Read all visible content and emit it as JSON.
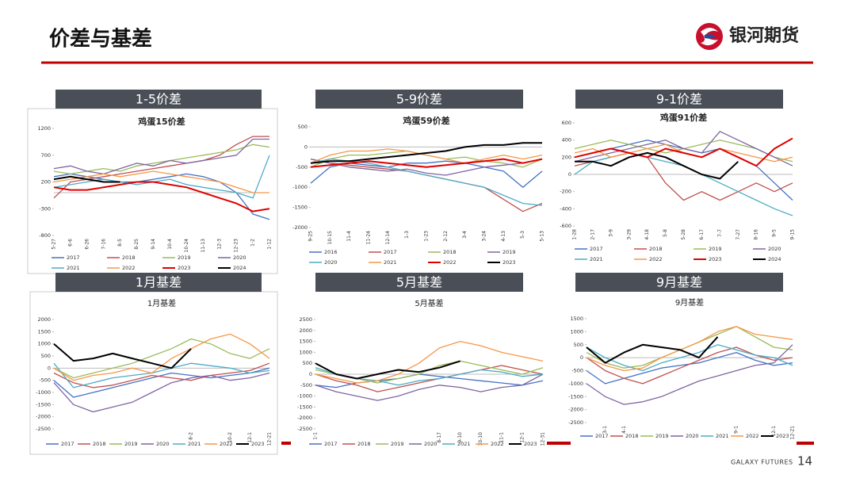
{
  "header": {
    "title": "价差与基差",
    "logo": "银河期货"
  },
  "footer": {
    "brand": "GALAXY FUTURES",
    "page": "14"
  },
  "chart_data": [
    {
      "type": "line",
      "section": "1-5价差",
      "title": "鸡蛋15价差",
      "categories": [
        "5-27",
        "6-6",
        "6-26",
        "7-16",
        "8-5",
        "8-25",
        "9-14",
        "10-4",
        "10-24",
        "11-13",
        "12-3",
        "12-23",
        "1-2",
        "1-12"
      ],
      "ylim": [
        -800,
        1200
      ],
      "yticks": [
        -800,
        -300,
        200,
        700,
        1200
      ],
      "series": [
        {
          "name": "2017",
          "color": "#4472c4",
          "values": [
            300,
            350,
            300,
            250,
            200,
            200,
            250,
            300,
            350,
            300,
            200,
            0,
            -400,
            -500
          ]
        },
        {
          "name": "2018",
          "color": "#c0504d",
          "values": [
            -100,
            200,
            250,
            300,
            350,
            400,
            450,
            500,
            550,
            600,
            700,
            900,
            1050,
            1050
          ]
        },
        {
          "name": "2019",
          "color": "#9bbb59",
          "values": [
            400,
            350,
            400,
            450,
            400,
            500,
            550,
            600,
            650,
            700,
            750,
            800,
            900,
            850
          ]
        },
        {
          "name": "2020",
          "color": "#8064a2",
          "values": [
            450,
            500,
            400,
            350,
            450,
            550,
            500,
            600,
            550,
            600,
            650,
            700,
            1000,
            1000
          ]
        },
        {
          "name": "2021",
          "color": "#4bacc6",
          "values": [
            100,
            150,
            200,
            250,
            200,
            150,
            200,
            250,
            150,
            100,
            50,
            0,
            -100,
            700
          ]
        },
        {
          "name": "2022",
          "color": "#f79646",
          "values": [
            200,
            250,
            300,
            350,
            300,
            350,
            400,
            350,
            300,
            250,
            200,
            100,
            0,
            0
          ]
        },
        {
          "name": "2023",
          "color": "#e00000",
          "values": [
            100,
            50,
            50,
            100,
            150,
            200,
            200,
            150,
            100,
            0,
            -100,
            -200,
            -350,
            -300
          ]
        },
        {
          "name": "2024",
          "color": "#000000",
          "values": [
            250,
            300,
            250,
            200,
            200,
            null,
            null,
            null,
            null,
            null,
            null,
            null,
            null,
            null
          ]
        }
      ]
    },
    {
      "type": "line",
      "section": "5-9价差",
      "title": "鸡蛋59价差",
      "categories": [
        "9-25",
        "10-15",
        "11-4",
        "11-24",
        "12-14",
        "1-3",
        "1-23",
        "2-12",
        "3-4",
        "3-24",
        "4-13",
        "5-3",
        "5-13"
      ],
      "ylim": [
        -2000,
        500
      ],
      "yticks": [
        -2000,
        -1500,
        -1000,
        -500,
        0,
        500
      ],
      "series": [
        {
          "name": "2016",
          "color": "#4472c4",
          "values": [
            -900,
            -500,
            -400,
            -450,
            -500,
            -400,
            -400,
            -350,
            -400,
            -500,
            -600,
            -1000,
            -600
          ]
        },
        {
          "name": "2017",
          "color": "#c0504d",
          "values": [
            -300,
            -400,
            -450,
            -500,
            -550,
            -600,
            -700,
            -800,
            -900,
            -1000,
            -1300,
            -1600,
            -1400
          ]
        },
        {
          "name": "2018",
          "color": "#9bbb59",
          "values": [
            -500,
            -300,
            -200,
            -200,
            -150,
            -100,
            -200,
            -300,
            -250,
            -350,
            -400,
            -500,
            -300
          ]
        },
        {
          "name": "2019",
          "color": "#8064a2",
          "values": [
            -300,
            -400,
            -500,
            -550,
            -600,
            -550,
            -650,
            -700,
            -600,
            -500,
            -450,
            -400,
            -300
          ]
        },
        {
          "name": "2020",
          "color": "#4bacc6",
          "values": [
            -400,
            -300,
            -350,
            -400,
            -500,
            -600,
            -700,
            -800,
            -900,
            -1000,
            -1200,
            -1400,
            -1450
          ]
        },
        {
          "name": "2021",
          "color": "#f79646",
          "values": [
            -400,
            -200,
            -100,
            -100,
            -50,
            -100,
            -200,
            -300,
            -400,
            -300,
            -200,
            -300,
            -200
          ]
        },
        {
          "name": "2022",
          "color": "#e00000",
          "values": [
            -500,
            -450,
            -400,
            -350,
            -400,
            -450,
            -500,
            -450,
            -400,
            -350,
            -300,
            -400,
            -300
          ]
        },
        {
          "name": "2023",
          "color": "#000000",
          "values": [
            -400,
            -350,
            -350,
            -300,
            -250,
            -200,
            -150,
            -100,
            0,
            50,
            50,
            100,
            100
          ]
        }
      ]
    },
    {
      "type": "line",
      "section": "9-1价差",
      "title": "鸡蛋91价差",
      "categories": [
        "1-28",
        "2-17",
        "3-9",
        "3-29",
        "4-18",
        "5-8",
        "5-28",
        "6-17",
        "7-7",
        "7-27",
        "8-16",
        "9-5",
        "9-15"
      ],
      "ylim": [
        -600,
        600
      ],
      "yticks": [
        -600,
        -400,
        -200,
        0,
        200,
        400,
        600
      ],
      "series": [
        {
          "name": "2017",
          "color": "#4472c4",
          "values": [
            200,
            250,
            300,
            350,
            400,
            350,
            300,
            250,
            300,
            200,
            100,
            -100,
            -300
          ]
        },
        {
          "name": "2018",
          "color": "#c0504d",
          "values": [
            100,
            150,
            200,
            250,
            200,
            -100,
            -300,
            -200,
            -300,
            -200,
            -100,
            -200,
            -100
          ]
        },
        {
          "name": "2019",
          "color": "#9bbb59",
          "values": [
            300,
            350,
            400,
            350,
            300,
            250,
            300,
            350,
            400,
            350,
            300,
            200,
            150
          ]
        },
        {
          "name": "2020",
          "color": "#8064a2",
          "values": [
            150,
            200,
            250,
            300,
            350,
            400,
            300,
            250,
            500,
            400,
            300,
            200,
            100
          ]
        },
        {
          "name": "2021",
          "color": "#4bacc6",
          "values": [
            0,
            150,
            200,
            250,
            200,
            150,
            100,
            0,
            -100,
            -200,
            -300,
            -400,
            -480
          ]
        },
        {
          "name": "2022",
          "color": "#f79646",
          "values": [
            250,
            300,
            200,
            250,
            300,
            350,
            250,
            200,
            300,
            250,
            200,
            150,
            200
          ]
        },
        {
          "name": "2023",
          "color": "#e00000",
          "values": [
            200,
            250,
            300,
            250,
            200,
            300,
            250,
            200,
            300,
            200,
            100,
            300,
            420
          ]
        },
        {
          "name": "2024",
          "color": "#000000",
          "values": [
            150,
            150,
            100,
            200,
            250,
            200,
            100,
            0,
            -50,
            150,
            null,
            null,
            null
          ]
        }
      ]
    },
    {
      "type": "line",
      "section": "1月基差",
      "title": "1月基差",
      "categories": [
        null,
        null,
        null,
        null,
        null,
        null,
        null,
        "8-2",
        null,
        "10-2",
        "12-1",
        "12-21"
      ],
      "ylim": [
        -2500,
        2000
      ],
      "yticks": [
        -2500,
        -2000,
        -1500,
        -1000,
        -500,
        0,
        500,
        1000,
        1500,
        2000
      ],
      "series": [
        {
          "name": "2017",
          "color": "#4472c4",
          "values": [
            -500,
            -1200,
            -1000,
            -800,
            -600,
            -400,
            -200,
            -300,
            -400,
            -300,
            -200,
            0
          ]
        },
        {
          "name": "2018",
          "color": "#c0504d",
          "values": [
            -200,
            -600,
            -800,
            -700,
            -500,
            -300,
            -400,
            -500,
            -300,
            -200,
            -100,
            200
          ]
        },
        {
          "name": "2019",
          "color": "#9bbb59",
          "values": [
            0,
            -400,
            -200,
            0,
            200,
            500,
            800,
            1200,
            1000,
            600,
            400,
            800
          ]
        },
        {
          "name": "2020",
          "color": "#8064a2",
          "values": [
            -600,
            -1500,
            -1800,
            -1600,
            -1400,
            -1000,
            -600,
            -400,
            -300,
            -500,
            -400,
            -200
          ]
        },
        {
          "name": "2021",
          "color": "#4bacc6",
          "values": [
            200,
            -800,
            -600,
            -400,
            -300,
            -200,
            0,
            200,
            100,
            0,
            -200,
            -100
          ]
        },
        {
          "name": "2022",
          "color": "#f79646",
          "values": [
            0,
            -500,
            -300,
            -200,
            0,
            -200,
            400,
            800,
            1200,
            1400,
            1000,
            400
          ]
        },
        {
          "name": "2023",
          "color": "#000000",
          "values": [
            1000,
            300,
            400,
            600,
            400,
            200,
            0,
            800,
            null,
            null,
            null,
            null
          ]
        }
      ]
    },
    {
      "type": "line",
      "section": "5月基差",
      "title": "5月基差",
      "categories": [
        "1-1",
        null,
        null,
        null,
        null,
        null,
        "8-17",
        "9-10",
        "10-10",
        "11-1",
        "12-1",
        "12-31"
      ],
      "ylim": [
        -2500,
        2500
      ],
      "yticks": [
        -2500,
        -2000,
        -1500,
        -1000,
        -500,
        0,
        500,
        1000,
        1500,
        2000,
        2500
      ],
      "series": [
        {
          "name": "2017",
          "color": "#4472c4",
          "values": [
            -500,
            -600,
            -400,
            -300,
            -200,
            0,
            -100,
            -200,
            -300,
            -400,
            -500,
            -300
          ]
        },
        {
          "name": "2018",
          "color": "#c0504d",
          "values": [
            0,
            -300,
            -500,
            -800,
            -600,
            -400,
            -200,
            0,
            200,
            400,
            200,
            0
          ]
        },
        {
          "name": "2019",
          "color": "#9bbb59",
          "values": [
            200,
            0,
            -200,
            -400,
            -200,
            0,
            400,
            600,
            400,
            200,
            0,
            300
          ]
        },
        {
          "name": "2020",
          "color": "#8064a2",
          "values": [
            -500,
            -800,
            -1000,
            -1200,
            -1000,
            -700,
            -500,
            -600,
            -800,
            -600,
            -500,
            0
          ]
        },
        {
          "name": "2021",
          "color": "#4bacc6",
          "values": [
            300,
            0,
            -200,
            -300,
            -500,
            -300,
            -200,
            0,
            200,
            100,
            -100,
            0
          ]
        },
        {
          "name": "2022",
          "color": "#f79646",
          "values": [
            0,
            -200,
            -400,
            -300,
            0,
            500,
            1200,
            1500,
            1300,
            1000,
            800,
            600
          ]
        },
        {
          "name": "2023",
          "color": "#000000",
          "values": [
            500,
            0,
            -200,
            0,
            200,
            100,
            300,
            600,
            null,
            null,
            null,
            null
          ]
        }
      ]
    },
    {
      "type": "line",
      "section": "9月基差",
      "title": "9月基差",
      "categories": [
        null,
        "3-1",
        "4-1",
        null,
        null,
        null,
        null,
        null,
        "9-1",
        null,
        "12-1",
        "12-21"
      ],
      "ylim": [
        -2500,
        1500
      ],
      "yticks": [
        -2500,
        -2000,
        -1500,
        -1000,
        -500,
        0,
        500,
        1000,
        1500
      ],
      "series": [
        {
          "name": "2017",
          "color": "#4472c4",
          "values": [
            -500,
            -1000,
            -800,
            -600,
            -400,
            -300,
            -200,
            0,
            200,
            -100,
            -300,
            -200
          ]
        },
        {
          "name": "2018",
          "color": "#c0504d",
          "values": [
            0,
            -500,
            -800,
            -1000,
            -700,
            -400,
            -100,
            200,
            400,
            100,
            -100,
            0
          ]
        },
        {
          "name": "2019",
          "color": "#9bbb59",
          "values": [
            200,
            -200,
            -400,
            -300,
            0,
            300,
            600,
            900,
            1200,
            800,
            400,
            300
          ]
        },
        {
          "name": "2020",
          "color": "#8064a2",
          "values": [
            -1000,
            -1500,
            -1800,
            -1700,
            -1500,
            -1200,
            -900,
            -700,
            -500,
            -300,
            -200,
            500
          ]
        },
        {
          "name": "2021",
          "color": "#4bacc6",
          "values": [
            400,
            0,
            -300,
            -500,
            -200,
            0,
            200,
            500,
            300,
            100,
            0,
            -300
          ]
        },
        {
          "name": "2022",
          "color": "#f79646",
          "values": [
            0,
            -300,
            -500,
            -400,
            0,
            300,
            600,
            1000,
            1200,
            900,
            800,
            700
          ]
        },
        {
          "name": "2023",
          "color": "#000000",
          "values": [
            400,
            -200,
            200,
            500,
            400,
            300,
            0,
            800,
            null,
            null,
            null,
            null
          ]
        }
      ]
    }
  ]
}
